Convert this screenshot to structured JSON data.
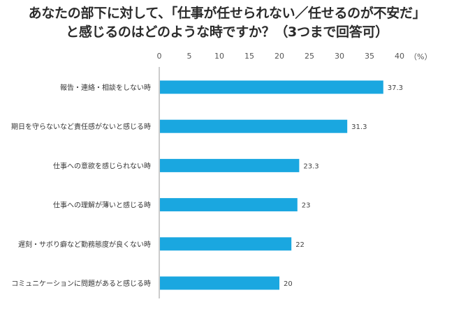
{
  "title": {
    "line1": "あなたの部下に対して、「仕事が任せられない／任せるのが不安だ」",
    "line2": "と感じるのはどのような時ですか？（3つまで回答可）"
  },
  "chart_data": {
    "type": "bar",
    "orientation": "horizontal",
    "categories": [
      "報告・連絡・相談をしない時",
      "期日を守らないなど責任感がないと感じる時",
      "仕事への意欲を感じられない時",
      "仕事への理解が薄いと感じる時",
      "遅刻・サボり癖など勤務態度が良くない時",
      "コミュニケーションに問題があると感じる時"
    ],
    "values": [
      37.3,
      31.3,
      23.3,
      23,
      22,
      20
    ],
    "value_labels": [
      "37.3",
      "31.3",
      "23.3",
      "23",
      "22",
      "20"
    ],
    "xlim": [
      0,
      40
    ],
    "xticks": [
      "0",
      "5",
      "10",
      "15",
      "20",
      "25",
      "30",
      "35",
      "40"
    ],
    "unit_label": "（%）",
    "bar_color": "#1aa7e0",
    "axis_position": "top",
    "legend": "none"
  }
}
